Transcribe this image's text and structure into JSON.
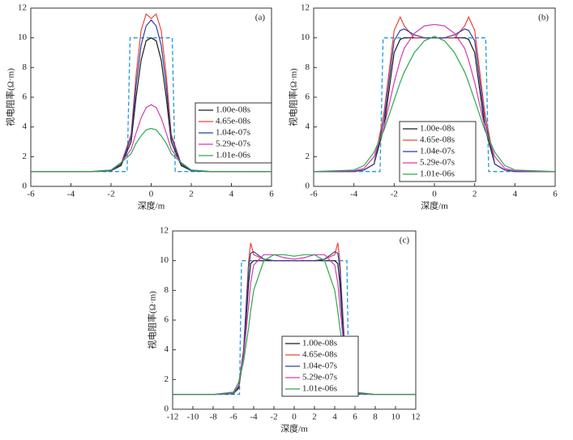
{
  "chart_data": [
    {
      "type": "line",
      "annotation": "(a)",
      "xlabel": "深度/m",
      "ylabel": "视电阻率(Ω·m)",
      "x": [
        -6,
        -4,
        -3,
        -2,
        -1.5,
        -1,
        -0.75,
        -0.5,
        -0.25,
        0,
        0.25,
        0.5,
        0.75,
        1,
        1.5,
        2,
        3,
        4,
        6
      ],
      "series": [
        {
          "name": "1.00e-08s",
          "color": "#1a1a1a",
          "values": [
            1,
            1,
            1,
            1.05,
            1.4,
            3,
            6,
            8.5,
            9.8,
            10,
            9.8,
            8.5,
            6,
            3,
            1.4,
            1.05,
            1,
            1,
            1
          ]
        },
        {
          "name": "4.65e-08s",
          "color": "#e8473e",
          "values": [
            1,
            1,
            1,
            1.05,
            1.5,
            3.5,
            7.5,
            10.5,
            11.6,
            11.3,
            11.6,
            10.5,
            7.5,
            3.5,
            1.5,
            1.05,
            1,
            1,
            1
          ]
        },
        {
          "name": "1.04e-07s",
          "color": "#2f3fa0",
          "values": [
            1,
            1,
            1,
            1.05,
            1.5,
            3.3,
            6.8,
            9.5,
            10.8,
            11.2,
            10.8,
            9.5,
            6.8,
            3.3,
            1.5,
            1.05,
            1,
            1,
            1
          ]
        },
        {
          "name": "5.29e-07s",
          "color": "#d63bb0",
          "values": [
            1,
            1,
            1,
            1.1,
            1.6,
            2.5,
            3.6,
            4.6,
            5.3,
            5.5,
            5.3,
            4.6,
            3.6,
            2.5,
            1.6,
            1.1,
            1,
            1,
            1
          ]
        },
        {
          "name": "1.01e-06s",
          "color": "#2ea84a",
          "values": [
            1,
            1,
            1,
            1.1,
            1.6,
            2.2,
            2.9,
            3.4,
            3.8,
            3.9,
            3.8,
            3.4,
            2.9,
            2.2,
            1.6,
            1.1,
            1,
            1,
            1
          ]
        }
      ],
      "model": {
        "color": "#1f9bd6",
        "dash": true,
        "x": [
          -6,
          -1.2,
          -1.05,
          1.05,
          1.2,
          6
        ],
        "values": [
          1,
          1,
          10,
          10,
          1,
          1
        ]
      },
      "xlim": [
        -6,
        6
      ],
      "ylim": [
        0,
        12
      ],
      "xticks": [
        -6,
        -4,
        -2,
        0,
        2,
        4,
        6
      ],
      "yticks": [
        0,
        2,
        4,
        6,
        8,
        10,
        12
      ]
    },
    {
      "type": "line",
      "annotation": "(b)",
      "xlabel": "深度/m",
      "ylabel": "视电阻率(Ω·m)",
      "x": [
        -6,
        -4,
        -3.5,
        -3,
        -2.5,
        -2,
        -1.7,
        -1.5,
        -1,
        -0.5,
        0,
        0.5,
        1,
        1.5,
        1.7,
        2,
        2.5,
        3,
        3.5,
        4,
        6
      ],
      "series": [
        {
          "name": "1.00e-08s",
          "color": "#1a1a1a",
          "values": [
            1,
            1,
            1.1,
            1.5,
            4,
            9,
            9.9,
            10,
            10,
            10,
            10,
            10,
            10,
            10,
            9.9,
            9,
            4,
            1.5,
            1.1,
            1,
            1
          ]
        },
        {
          "name": "4.65e-08s",
          "color": "#e8473e",
          "values": [
            1,
            1,
            1.1,
            1.5,
            5,
            10.5,
            11.4,
            10.8,
            10,
            10,
            10,
            10,
            10,
            10.8,
            11.4,
            10.5,
            5,
            1.5,
            1.1,
            1,
            1
          ]
        },
        {
          "name": "1.04e-07s",
          "color": "#2f3fa0",
          "values": [
            1,
            1,
            1.1,
            1.5,
            4.5,
            9.8,
            10.5,
            10.6,
            10.2,
            10,
            10,
            10,
            10.2,
            10.6,
            10.5,
            9.8,
            4.5,
            1.5,
            1.1,
            1,
            1
          ]
        },
        {
          "name": "5.29e-07s",
          "color": "#d63bb0",
          "values": [
            1,
            1.05,
            1.2,
            2,
            4,
            7,
            8.5,
            9.3,
            10.3,
            10.8,
            10.9,
            10.8,
            10.3,
            9.3,
            8.5,
            7,
            4,
            2,
            1.2,
            1.05,
            1
          ]
        },
        {
          "name": "1.01e-06s",
          "color": "#2ea84a",
          "values": [
            1,
            1.1,
            1.4,
            2.3,
            3.8,
            5.8,
            7,
            7.7,
            9,
            9.8,
            10.1,
            9.8,
            9,
            7.7,
            7,
            5.8,
            3.8,
            2.3,
            1.4,
            1.1,
            1
          ]
        }
      ],
      "model": {
        "color": "#1f9bd6",
        "dash": true,
        "x": [
          -6,
          -2.7,
          -2.55,
          2.55,
          2.7,
          6
        ],
        "values": [
          1,
          1,
          10,
          10,
          1,
          1
        ]
      },
      "xlim": [
        -6,
        6
      ],
      "ylim": [
        0,
        12
      ],
      "xticks": [
        -6,
        -4,
        -2,
        0,
        2,
        4,
        6
      ],
      "yticks": [
        0,
        2,
        4,
        6,
        8,
        10,
        12
      ]
    },
    {
      "type": "line",
      "annotation": "(c)",
      "xlabel": "深度/m",
      "ylabel": "视电阻率(Ω·m)",
      "x": [
        -12,
        -8,
        -6,
        -5.5,
        -5,
        -4.5,
        -4.3,
        -4,
        -3,
        -2,
        -1,
        0,
        1,
        2,
        3,
        4,
        4.3,
        4.5,
        5,
        5.5,
        6,
        8,
        12
      ],
      "series": [
        {
          "name": "1.00e-08s",
          "color": "#1a1a1a",
          "values": [
            1,
            1,
            1.05,
            1.4,
            3.5,
            8.5,
            9.8,
            10,
            10,
            10,
            10,
            10,
            10,
            10,
            10,
            10,
            9.8,
            8.5,
            3.5,
            1.4,
            1.05,
            1,
            1
          ]
        },
        {
          "name": "4.65e-08s",
          "color": "#e8473e",
          "values": [
            1,
            1,
            1.05,
            1.5,
            4,
            10,
            11.2,
            10.4,
            10.1,
            10,
            10,
            10,
            10,
            10,
            10.1,
            10.4,
            11.2,
            10,
            4,
            1.5,
            1.05,
            1,
            1
          ]
        },
        {
          "name": "1.04e-07s",
          "color": "#2f3fa0",
          "values": [
            1,
            1,
            1.05,
            1.5,
            3.8,
            9.5,
            10.5,
            10.6,
            10.1,
            10,
            10,
            10,
            10,
            10,
            10.1,
            10.6,
            10.5,
            9.5,
            3.8,
            1.5,
            1.05,
            1,
            1
          ]
        },
        {
          "name": "5.29e-07s",
          "color": "#d63bb0",
          "values": [
            1,
            1,
            1.1,
            1.6,
            3.5,
            7,
            8.5,
            9.7,
            10.4,
            10.4,
            10.2,
            10.1,
            10.2,
            10.4,
            10.4,
            9.7,
            8.5,
            7,
            3.5,
            1.6,
            1.1,
            1,
            1
          ]
        },
        {
          "name": "1.01e-06s",
          "color": "#2ea84a",
          "values": [
            1,
            1,
            1.15,
            1.8,
            3.2,
            5.5,
            6.6,
            8,
            10,
            10.4,
            10.4,
            10.3,
            10.4,
            10.4,
            10,
            8,
            6.6,
            5.5,
            3.2,
            1.8,
            1.15,
            1,
            1
          ]
        }
      ],
      "model": {
        "color": "#1f9bd6",
        "dash": true,
        "x": [
          -12,
          -5.4,
          -5.2,
          5.2,
          5.4,
          12
        ],
        "values": [
          1,
          1,
          10,
          10,
          1,
          1
        ]
      },
      "xlim": [
        -12,
        12
      ],
      "ylim": [
        0,
        12
      ],
      "xticks": [
        -12,
        -10,
        -8,
        -6,
        -4,
        -2,
        0,
        2,
        4,
        6,
        8,
        10,
        12
      ],
      "yticks": [
        0,
        2,
        4,
        6,
        8,
        10,
        12
      ]
    }
  ]
}
